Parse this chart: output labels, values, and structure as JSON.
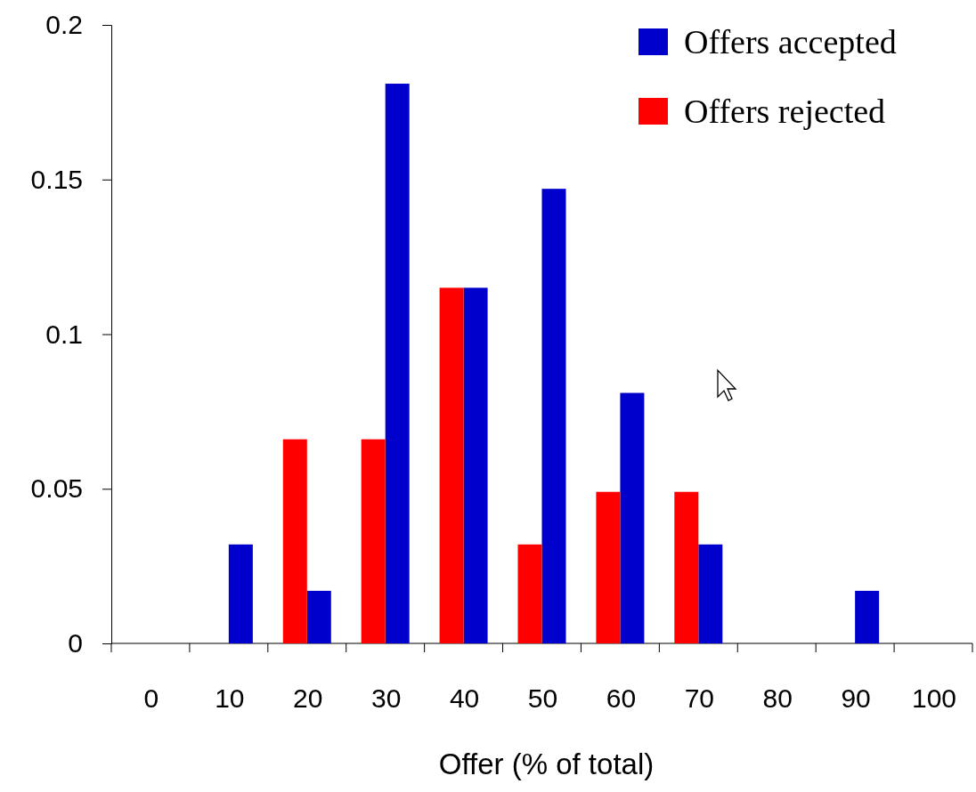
{
  "chart_data": {
    "type": "bar",
    "xlabel": "Offer (% of total)",
    "categories": [
      "0",
      "10",
      "20",
      "30",
      "40",
      "50",
      "60",
      "70",
      "80",
      "90",
      "100"
    ],
    "series": [
      {
        "name": "Offers accepted",
        "color": "#0000cc",
        "values": [
          0,
          0.032,
          0.017,
          0.181,
          0.115,
          0.147,
          0.081,
          0.032,
          0,
          0.017,
          0
        ]
      },
      {
        "name": "Offers rejected",
        "color": "#ff0000",
        "values": [
          0,
          0,
          0.066,
          0.066,
          0.115,
          0.032,
          0.049,
          0.049,
          0,
          0,
          0
        ]
      }
    ],
    "ylim": [
      0,
      0.2
    ],
    "yticks": [
      0,
      0.05,
      0.1,
      0.15,
      0.2
    ],
    "grid": false,
    "legend": "top right"
  }
}
